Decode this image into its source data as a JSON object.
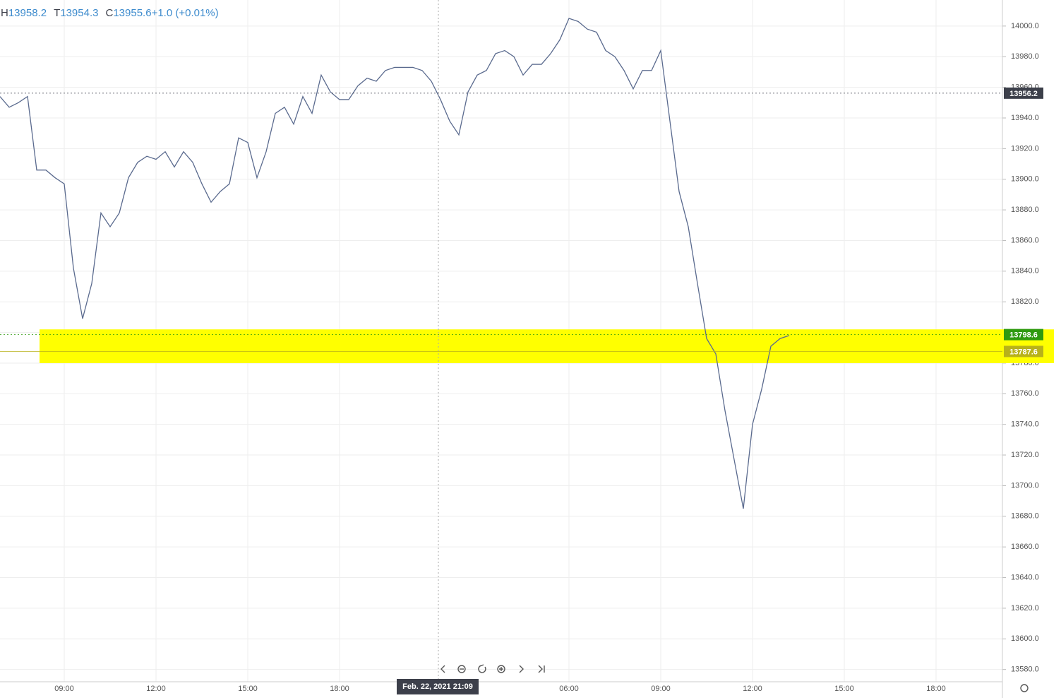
{
  "chart_data": {
    "type": "line",
    "header": [
      {
        "label": "H",
        "value": "13958.2"
      },
      {
        "label": "T",
        "value": "13954.3"
      },
      {
        "label": "C",
        "value": "13955.6"
      },
      {
        "label": "",
        "value": "+1.0 (+0.01%)"
      }
    ],
    "crosshair_label": "Feb. 22, 2021   21:09",
    "categories": [
      null,
      null,
      null,
      null,
      null,
      null,
      null,
      "09:00",
      null,
      null,
      null,
      null,
      null,
      null,
      null,
      null,
      null,
      "12:00",
      null,
      null,
      null,
      null,
      null,
      null,
      null,
      null,
      null,
      "15:00",
      null,
      null,
      null,
      null,
      null,
      null,
      null,
      null,
      null,
      "18:00",
      null,
      null,
      null,
      null,
      null,
      null,
      null,
      null,
      null,
      null,
      null,
      null,
      null,
      null,
      null,
      null,
      null,
      null,
      null,
      null,
      null,
      null,
      null,
      null,
      "06:00",
      null,
      null,
      null,
      null,
      null,
      null,
      null,
      null,
      null,
      "09:00",
      null,
      null,
      null,
      null,
      null,
      null,
      null,
      null,
      null,
      "12:00",
      null,
      null,
      null,
      null,
      null,
      null,
      null,
      null,
      null,
      "15:00",
      null,
      null,
      null,
      null,
      null,
      null,
      null,
      null,
      null,
      "18:00",
      null,
      null,
      null,
      null,
      null,
      null,
      null
    ],
    "series": [
      {
        "color": "#5a6a8e",
        "values": [
          13954,
          13947,
          13950,
          13954,
          13906,
          13906,
          13901,
          13897,
          13842,
          13809,
          13832,
          13878,
          13869,
          13878,
          13901,
          13911,
          13915,
          13913,
          13918,
          13908,
          13918,
          13911,
          13897,
          13885,
          13892,
          13897,
          13927,
          13924,
          13901,
          13918,
          13943,
          13947,
          13936,
          13954,
          13943,
          13968,
          13957,
          13952,
          13952,
          13961,
          13966,
          13964,
          13971,
          13973,
          13973,
          13973,
          13971,
          13964,
          13952,
          13938,
          13929,
          13957,
          13968,
          13971,
          13982,
          13984,
          13980,
          13968,
          13975,
          13975,
          13982,
          13991,
          14005,
          14003,
          13998,
          13996,
          13984,
          13980,
          13971,
          13959,
          13971,
          13971,
          13984,
          13938,
          13892,
          13869,
          13832,
          13796,
          13786,
          13749,
          13717,
          13685,
          13740,
          13763,
          13791,
          13796,
          13798,
          null,
          null,
          null,
          null,
          null,
          null,
          null,
          null,
          null,
          null,
          null,
          null,
          null,
          null,
          null,
          null,
          null,
          null,
          null,
          null,
          null,
          null,
          null
        ]
      }
    ],
    "ylim": [
      13572,
      14017
    ],
    "yticks": [
      {
        "value": 13580,
        "label": "13580.0"
      },
      {
        "value": 13600,
        "label": "13600.0"
      },
      {
        "value": 13620,
        "label": "13620.0"
      },
      {
        "value": 13640,
        "label": "13640.0"
      },
      {
        "value": 13660,
        "label": "13660.0"
      },
      {
        "value": 13680,
        "label": "13680.0"
      },
      {
        "value": 13700,
        "label": "13700.0"
      },
      {
        "value": 13720,
        "label": "13720.0"
      },
      {
        "value": 13740,
        "label": "13740.0"
      },
      {
        "value": 13760,
        "label": "13760.0"
      },
      {
        "value": 13780,
        "label": "13780.0"
      },
      {
        "value": 13800,
        "label": "13800.0"
      },
      {
        "value": 13820,
        "label": "13820.0"
      },
      {
        "value": 13840,
        "label": "13840.0"
      },
      {
        "value": 13860,
        "label": "13860.0"
      },
      {
        "value": 13880,
        "label": "13880.0"
      },
      {
        "value": 13900,
        "label": "13900.0"
      },
      {
        "value": 13920,
        "label": "13920.0"
      },
      {
        "value": 13940,
        "label": "13940.0"
      },
      {
        "value": 13960,
        "label": "13960.0"
      },
      {
        "value": 13980,
        "label": "13980.0"
      },
      {
        "value": 14000,
        "label": "14000.0"
      }
    ],
    "price_lines": [
      {
        "value": 13956.2,
        "color": "#3c3f4a"
      },
      {
        "value": 13798.6,
        "color": "#2e9a0f"
      },
      {
        "value": 13787.6,
        "color": "#b8b21a"
      }
    ],
    "highlight_range": [
      13780,
      13802
    ],
    "highlight_color": "#ffff00",
    "grid": true
  }
}
